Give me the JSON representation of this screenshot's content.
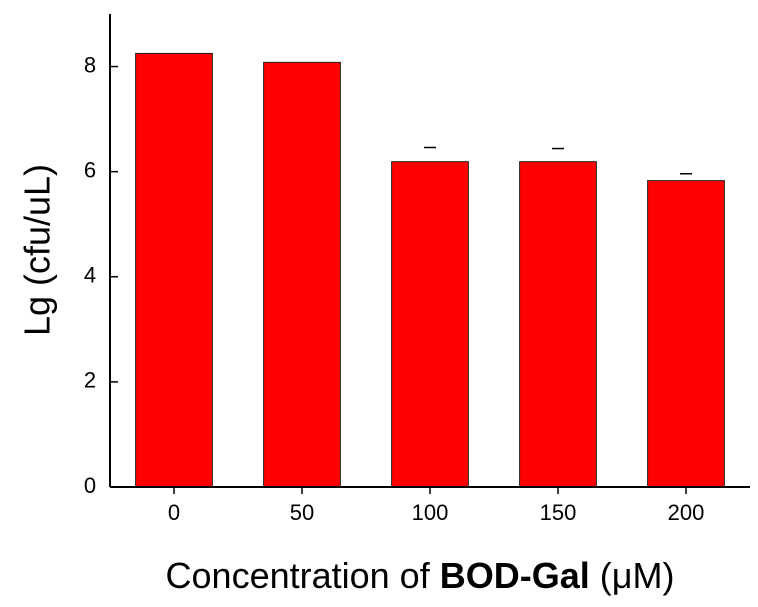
{
  "chart_data": {
    "type": "bar",
    "y_label": "Lg (cfu/uL)",
    "x_label_parts": [
      "Concentration of",
      "BOD-Gal",
      "(μM)"
    ],
    "categories": [
      "0",
      "50",
      "100",
      "150",
      "200"
    ],
    "values": [
      8.25,
      8.08,
      6.19,
      6.19,
      5.83
    ],
    "errors": [
      null,
      null,
      0.27,
      0.25,
      0.13
    ],
    "color": "#ff0000",
    "ylim": [
      0,
      9
    ],
    "yticks": [
      0,
      2,
      4,
      6,
      8
    ],
    "grid": false
  }
}
